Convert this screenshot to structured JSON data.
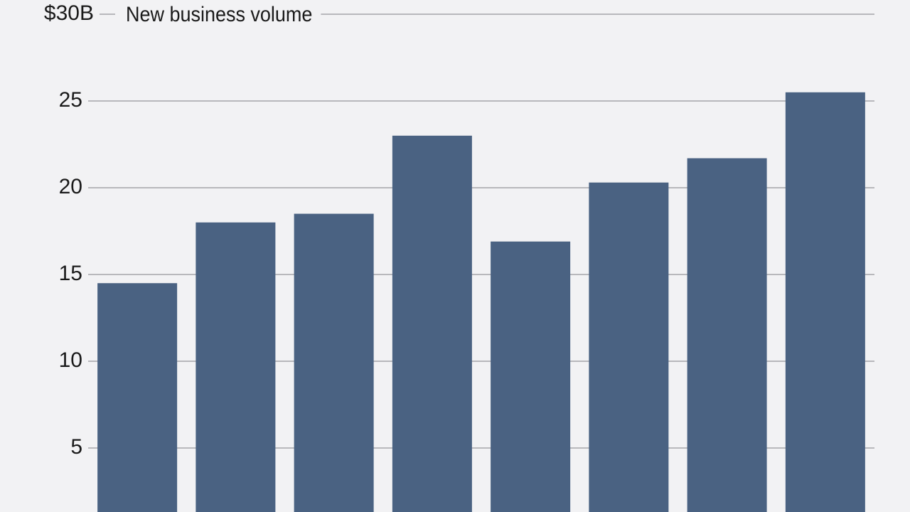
{
  "chart_data": {
    "type": "bar",
    "title": "New business volume",
    "categories": [
      null,
      null,
      null,
      null,
      null,
      null,
      null,
      null
    ],
    "values": [
      14.5,
      18.0,
      18.5,
      23.0,
      16.9,
      20.3,
      21.7,
      25.5
    ],
    "color": "#4a6282",
    "ylim": [
      0,
      30
    ],
    "yticks": [
      5,
      10,
      15,
      20,
      25,
      {
        "value": 30,
        "label": "$30B"
      }
    ],
    "grid": true
  }
}
